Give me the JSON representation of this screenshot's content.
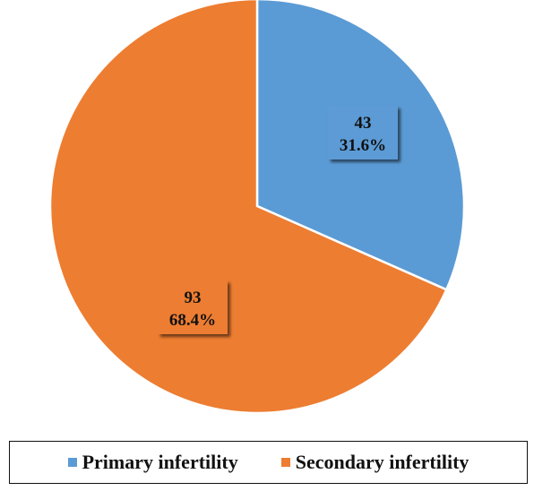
{
  "chart_data": {
    "type": "pie",
    "categories": [
      "Primary infertility",
      "Secondary infertility"
    ],
    "values": [
      43,
      93
    ],
    "percentages": [
      "31.6%",
      "68.4%"
    ],
    "value_labels": [
      "43",
      "93"
    ],
    "colors": [
      "#5B9BD5",
      "#ED7D31"
    ],
    "legend_position": "bottom"
  },
  "legend": {
    "items": [
      {
        "label": "Primary infertility",
        "color": "#5B9BD5"
      },
      {
        "label": "Secondary infertility",
        "color": "#ED7D31"
      }
    ]
  }
}
